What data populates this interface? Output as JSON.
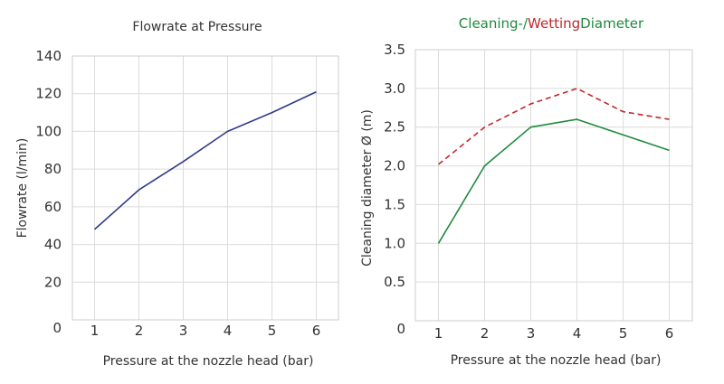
{
  "colors": {
    "flow_line": "#2f3a8c",
    "cleaning_line": "#1e8a3c",
    "wetting_line": "#c0282d"
  },
  "chart_data": [
    {
      "type": "line",
      "title": "Flowrate at Pressure",
      "xlabel": "Pressure at the nozzle head (bar)",
      "ylabel": "Flowrate (l/min)",
      "x": [
        1,
        2,
        3,
        4,
        5,
        6
      ],
      "xlim": [
        0.5,
        6.5
      ],
      "ylim": [
        0,
        140
      ],
      "yticks": [
        "0",
        "20",
        "40",
        "60",
        "80",
        "100",
        "120",
        "140"
      ],
      "xticks": [
        "1",
        "2",
        "3",
        "4",
        "5",
        "6"
      ],
      "grid": true,
      "series": [
        {
          "values": [
            48,
            69,
            84,
            100,
            110,
            121
          ]
        }
      ]
    },
    {
      "type": "line",
      "title_parts": [
        "Cleaning-/",
        "Wetting",
        "Diameter"
      ],
      "xlabel": "Pressure at the nozzle head (bar)",
      "ylabel": "Cleaning diameter Ø (m)",
      "x": [
        1,
        2,
        3,
        4,
        5,
        6
      ],
      "xlim": [
        0.5,
        6.5
      ],
      "ylim": [
        0,
        3.5
      ],
      "yticks": [
        "0",
        "0.5",
        "1.0",
        "1.5",
        "2.0",
        "2.5",
        "3.0",
        "3.5"
      ],
      "xticks": [
        "1",
        "2",
        "3",
        "4",
        "5",
        "6"
      ],
      "grid": true,
      "series": [
        {
          "values": [
            1.0,
            2.0,
            2.5,
            2.6,
            2.4,
            2.2
          ],
          "style": "solid"
        },
        {
          "values": [
            2.02,
            2.5,
            2.8,
            3.0,
            2.7,
            2.6
          ],
          "style": "dashed"
        }
      ]
    }
  ]
}
